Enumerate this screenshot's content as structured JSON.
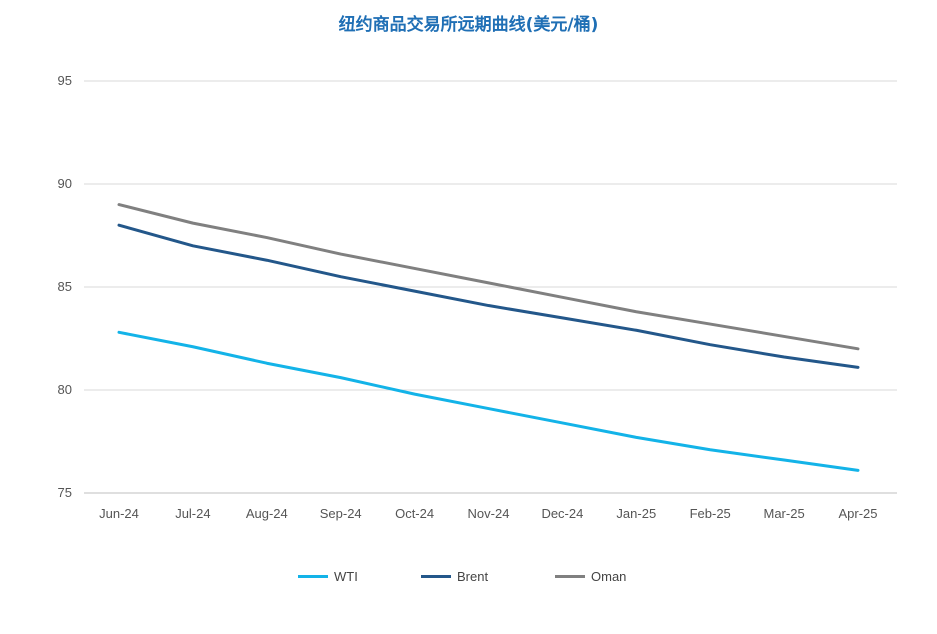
{
  "chart_data": {
    "type": "line",
    "title": "纽约商品交易所远期曲线(美元/桶)",
    "xlabel": "",
    "ylabel": "",
    "categories": [
      "Jun-24",
      "Jul-24",
      "Aug-24",
      "Sep-24",
      "Oct-24",
      "Nov-24",
      "Dec-24",
      "Jan-25",
      "Feb-25",
      "Mar-25",
      "Apr-25"
    ],
    "ylim": [
      75,
      95
    ],
    "yticks": [
      75,
      80,
      85,
      90,
      95
    ],
    "grid": true,
    "legend_position": "bottom",
    "series": [
      {
        "name": "WTI",
        "color": "#13b3e8",
        "values": [
          82.8,
          82.1,
          81.3,
          80.6,
          79.8,
          79.1,
          78.4,
          77.7,
          77.1,
          76.6,
          76.1
        ]
      },
      {
        "name": "Brent",
        "color": "#23578a",
        "values": [
          88.0,
          87.0,
          86.3,
          85.5,
          84.8,
          84.1,
          83.5,
          82.9,
          82.2,
          81.6,
          81.1
        ]
      },
      {
        "name": "Oman",
        "color": "#808080",
        "values": [
          89.0,
          88.1,
          87.4,
          86.6,
          85.9,
          85.2,
          84.5,
          83.8,
          83.2,
          82.6,
          82.0
        ]
      }
    ]
  }
}
